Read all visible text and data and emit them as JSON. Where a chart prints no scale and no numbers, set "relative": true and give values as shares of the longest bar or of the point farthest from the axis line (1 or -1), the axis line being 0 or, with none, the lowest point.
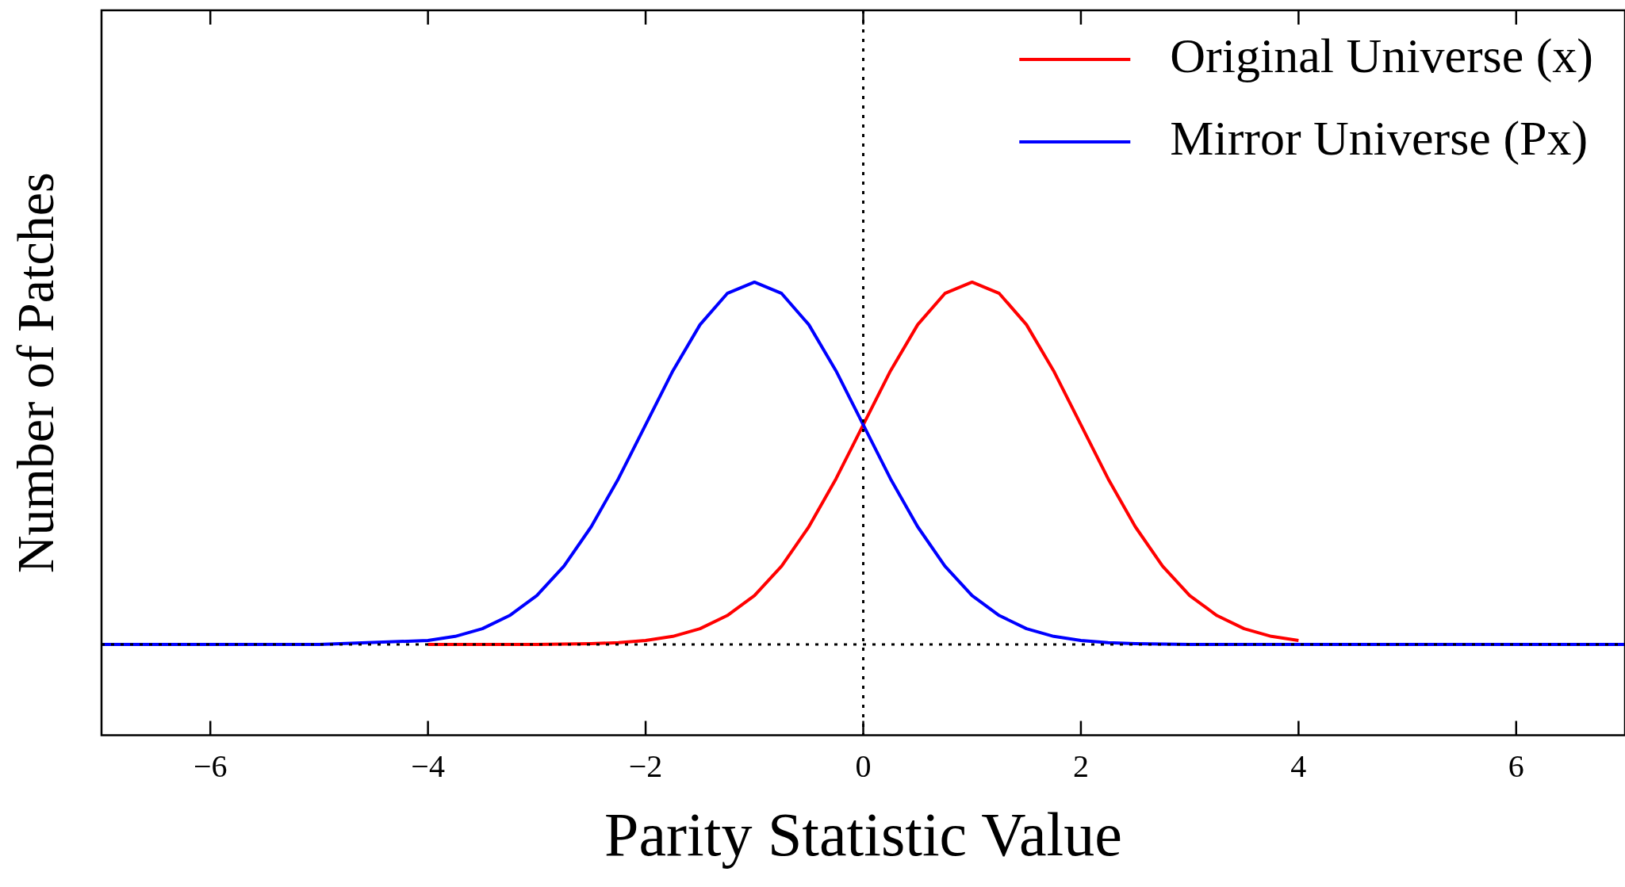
{
  "chart_data": {
    "type": "line",
    "xlabel": "Parity Statistic Value",
    "ylabel": "Number of Patches",
    "relative": true,
    "x": [
      -7,
      -5,
      -4,
      -3.75,
      -3.5,
      -3.25,
      -3,
      -2.75,
      -2.5,
      -2.25,
      -2,
      -1.75,
      -1.5,
      -1.25,
      -1,
      -0.75,
      -0.5,
      -0.25,
      0,
      0.25,
      0.5,
      0.75,
      1,
      1.25,
      1.5,
      1.75,
      2,
      2.25,
      2.5,
      2.75,
      3,
      3.25,
      3.5,
      3.75,
      4,
      5,
      7
    ],
    "series": [
      {
        "name": "Original Universe (x)",
        "color": "#ff0000",
        "values": [
          null,
          null,
          0.2,
          0.2,
          0.2,
          0.2,
          0.2,
          0.201,
          0.202,
          0.204,
          0.209,
          0.218,
          0.235,
          0.264,
          0.308,
          0.373,
          0.46,
          0.566,
          0.685,
          0.804,
          0.906,
          0.975,
          1,
          0.975,
          0.906,
          0.804,
          0.685,
          0.566,
          0.46,
          0.373,
          0.308,
          0.264,
          0.235,
          0.218,
          0.209,
          null,
          null
        ]
      },
      {
        "name": "Mirror Universe (Px)",
        "color": "#0000ff",
        "values": [
          0.2,
          0.2,
          0.209,
          0.218,
          0.235,
          0.264,
          0.308,
          0.373,
          0.46,
          0.566,
          0.685,
          0.804,
          0.906,
          0.975,
          1,
          0.975,
          0.906,
          0.804,
          0.685,
          0.566,
          0.46,
          0.373,
          0.308,
          0.264,
          0.235,
          0.218,
          0.209,
          0.204,
          0.202,
          0.201,
          0.2,
          0.2,
          0.2,
          0.2,
          0.2,
          0.2,
          0.2
        ]
      }
    ],
    "xlim": [
      -7,
      7
    ],
    "xticks": [
      -6,
      -4,
      -2,
      0,
      2,
      4,
      6
    ],
    "tick_labels": "x",
    "marker": "none",
    "line_style": "solid",
    "grid": false,
    "legend": "top right",
    "ref_lines": [
      {
        "axis": "x",
        "value": 0,
        "color": "#000000",
        "line_style": "dotted"
      },
      {
        "axis": "y",
        "value": 0.2,
        "color": "#000000",
        "line_style": "dotted"
      }
    ]
  }
}
